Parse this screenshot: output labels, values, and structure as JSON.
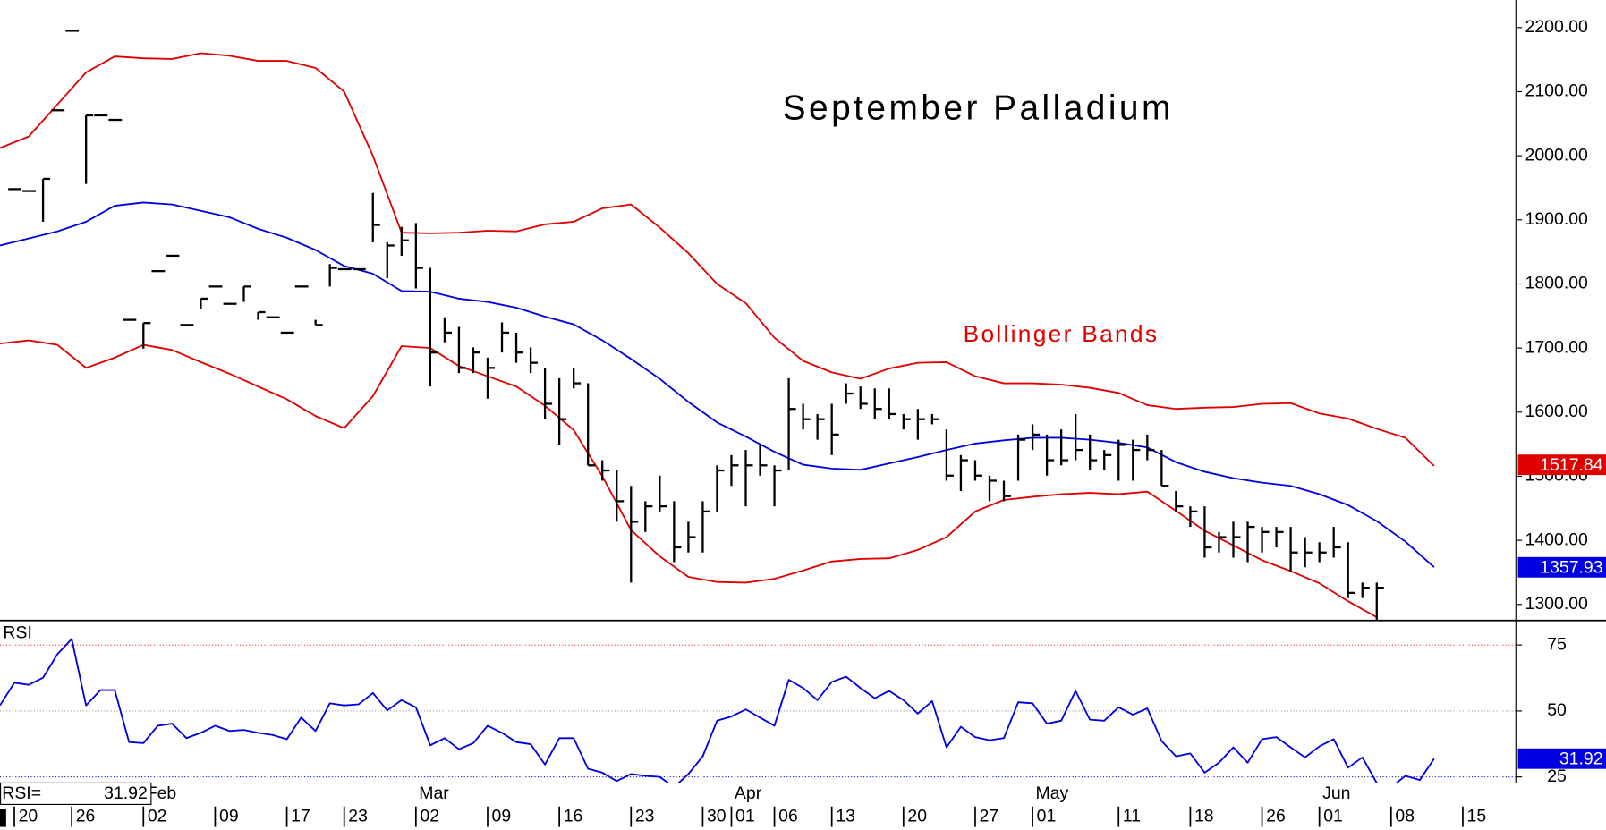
{
  "chart_data": [
    {
      "type": "ohlc",
      "title": "September Palladium",
      "annotation": "Bollinger Bands",
      "xlim": [
        -1,
        104.7
      ],
      "ylim": [
        1275,
        2243
      ],
      "yticks": [
        {
          "value": 1300,
          "label": "1300.00"
        },
        {
          "value": 1400,
          "label": "1400.00"
        },
        {
          "value": 1500,
          "label": "1500.00"
        },
        {
          "value": 1600,
          "label": "1600.00"
        },
        {
          "value": 1700,
          "label": "1700.00"
        },
        {
          "value": 1800,
          "label": "1800.00"
        },
        {
          "value": 1900,
          "label": "1900.00"
        },
        {
          "value": 2000,
          "label": "2000.00"
        },
        {
          "value": 2100,
          "label": "2100.00"
        },
        {
          "value": 2200,
          "label": "2200.00"
        }
      ],
      "bars": {
        "color": "#000000",
        "x": [
          0,
          1,
          2,
          3,
          4,
          5,
          6,
          7,
          8,
          9,
          10,
          11,
          12,
          13,
          14,
          15,
          16,
          17,
          18,
          19,
          20,
          21,
          22,
          23,
          24,
          25,
          26,
          27,
          28,
          29,
          30,
          31,
          32,
          33,
          34,
          35,
          36,
          37,
          38,
          39,
          40,
          41,
          42,
          43,
          44,
          45,
          46,
          47,
          48,
          49,
          50,
          51,
          52,
          53,
          54,
          55,
          56,
          57,
          58,
          59,
          60,
          61,
          62,
          63,
          64,
          65,
          66,
          67,
          68,
          69,
          70,
          71,
          72,
          73,
          74,
          75,
          76,
          77,
          78,
          79,
          80,
          81,
          82,
          83,
          84,
          85,
          86,
          87,
          88,
          89,
          90,
          91,
          92,
          93,
          94,
          95
        ],
        "high": [
          1948,
          1945,
          1964,
          2071,
          2195,
          2063,
          2063,
          2056,
          1744,
          1739,
          1820,
          1844,
          1736,
          1777,
          1796,
          1769,
          1796,
          1756,
          1748,
          1724,
          1796,
          1744,
          1831,
          1823,
          1823,
          1942,
          1865,
          1889,
          1895,
          1825,
          1748,
          1733,
          1701,
          1685,
          1740,
          1724,
          1701,
          1669,
          1653,
          1669,
          1645,
          1525,
          1509,
          1485,
          1461,
          1501,
          1461,
          1429,
          1461,
          1517,
          1533,
          1541,
          1549,
          1517,
          1653,
          1613,
          1597,
          1613,
          1645,
          1640,
          1637,
          1637,
          1597,
          1605,
          1597,
          1573,
          1533,
          1525,
          1501,
          1493,
          1565,
          1581,
          1565,
          1573,
          1597,
          1565,
          1541,
          1557,
          1557,
          1565,
          1541,
          1477,
          1453,
          1453,
          1413,
          1429,
          1429,
          1421,
          1421,
          1421,
          1405,
          1397,
          1421,
          1397,
          1334,
          1334
        ],
        "low": [
          1948,
          1945,
          1897,
          2071,
          2195,
          1956,
          2063,
          2056,
          1744,
          1699,
          1820,
          1844,
          1736,
          1761,
          1796,
          1769,
          1772,
          1744,
          1748,
          1724,
          1796,
          1736,
          1796,
          1823,
          1823,
          1865,
          1809,
          1844,
          1793,
          1640,
          1709,
          1661,
          1661,
          1621,
          1693,
          1677,
          1661,
          1589,
          1549,
          1637,
          1517,
          1493,
          1429,
          1334,
          1413,
          1445,
          1366,
          1381,
          1381,
          1445,
          1485,
          1453,
          1501,
          1453,
          1509,
          1573,
          1557,
          1533,
          1613,
          1605,
          1589,
          1589,
          1573,
          1557,
          1581,
          1493,
          1477,
          1493,
          1461,
          1461,
          1493,
          1541,
          1501,
          1517,
          1525,
          1509,
          1509,
          1493,
          1493,
          1525,
          1485,
          1445,
          1421,
          1373,
          1381,
          1373,
          1366,
          1381,
          1389,
          1350,
          1358,
          1366,
          1373,
          1310,
          1310,
          1275
        ],
        "close": [
          1948,
          1945,
          1964,
          2071,
          2195,
          2063,
          2063,
          2056,
          1744,
          1739,
          1820,
          1844,
          1736,
          1777,
          1796,
          1769,
          1796,
          1756,
          1748,
          1724,
          1796,
          1736,
          1825,
          1823,
          1823,
          1892,
          1860,
          1868,
          1825,
          1693,
          1724,
          1669,
          1693,
          1669,
          1724,
          1693,
          1677,
          1613,
          1589,
          1645,
          1517,
          1509,
          1461,
          1429,
          1453,
          1453,
          1389,
          1405,
          1445,
          1509,
          1517,
          1517,
          1517,
          1509,
          1605,
          1589,
          1589,
          1565,
          1629,
          1613,
          1605,
          1597,
          1589,
          1589,
          1589,
          1501,
          1525,
          1501,
          1493,
          1469,
          1557,
          1565,
          1525,
          1525,
          1541,
          1525,
          1533,
          1549,
          1541,
          1541,
          1485,
          1453,
          1445,
          1389,
          1405,
          1405,
          1421,
          1413,
          1413,
          1381,
          1381,
          1381,
          1389,
          1318,
          1326,
          1326
        ]
      },
      "series": [
        {
          "name": "upper",
          "color": "#e00000",
          "last": 1517.84,
          "x": [
            -1,
            1,
            3,
            5,
            7,
            9,
            11,
            13,
            15,
            17,
            19,
            21,
            23,
            25,
            27,
            29,
            31,
            33,
            35,
            37,
            39,
            41,
            43,
            45,
            47,
            49,
            51,
            53,
            55,
            57,
            59,
            61,
            63,
            65,
            67,
            69,
            71,
            73,
            75,
            77,
            79,
            81,
            83,
            85,
            87,
            89,
            91,
            93,
            95,
            97,
            99
          ],
          "values": [
            2012,
            2030,
            2080,
            2130,
            2155,
            2152,
            2151,
            2160,
            2156,
            2148,
            2148,
            2137,
            2100,
            2000,
            1880,
            1879,
            1880,
            1883,
            1882,
            1893,
            1897,
            1918,
            1924,
            1888,
            1848,
            1800,
            1770,
            1716,
            1680,
            1662,
            1652,
            1668,
            1677,
            1678,
            1656,
            1645,
            1645,
            1643,
            1638,
            1630,
            1611,
            1605,
            1607,
            1608,
            1613,
            1614,
            1598,
            1590,
            1574,
            1560,
            1516
          ]
        },
        {
          "name": "middle",
          "color": "#0000e0",
          "last": 1357.93,
          "x": [
            -1,
            1,
            3,
            5,
            7,
            9,
            11,
            13,
            15,
            17,
            19,
            21,
            23,
            25,
            27,
            29,
            31,
            33,
            35,
            37,
            39,
            41,
            43,
            45,
            47,
            49,
            51,
            53,
            55,
            57,
            59,
            61,
            63,
            65,
            67,
            69,
            71,
            73,
            75,
            77,
            79,
            81,
            83,
            85,
            87,
            89,
            91,
            93,
            95,
            97,
            99
          ],
          "values": [
            1860,
            1871,
            1882,
            1897,
            1922,
            1927,
            1924,
            1914,
            1904,
            1886,
            1872,
            1853,
            1828,
            1816,
            1789,
            1788,
            1777,
            1772,
            1763,
            1749,
            1737,
            1712,
            1683,
            1652,
            1616,
            1584,
            1562,
            1538,
            1518,
            1512,
            1510,
            1520,
            1530,
            1541,
            1551,
            1556,
            1560,
            1560,
            1557,
            1552,
            1545,
            1522,
            1507,
            1497,
            1490,
            1485,
            1472,
            1455,
            1430,
            1398,
            1358
          ]
        },
        {
          "name": "lower",
          "color": "#e00000",
          "x": [
            -1,
            1,
            3,
            5,
            7,
            9,
            11,
            13,
            15,
            17,
            19,
            21,
            23,
            25,
            27,
            29,
            31,
            33,
            35,
            37,
            39,
            41,
            43,
            45,
            47,
            49,
            51,
            53,
            55,
            57,
            59,
            61,
            63,
            65,
            67,
            69,
            71,
            73,
            75,
            77,
            79,
            81,
            83,
            85,
            87,
            89,
            91,
            93,
            95
          ],
          "values": [
            1707,
            1712,
            1705,
            1669,
            1685,
            1705,
            1697,
            1678,
            1660,
            1640,
            1620,
            1594,
            1575,
            1625,
            1703,
            1700,
            1672,
            1656,
            1640,
            1610,
            1572,
            1500,
            1416,
            1375,
            1343,
            1335,
            1334,
            1340,
            1353,
            1367,
            1371,
            1372,
            1385,
            1405,
            1445,
            1463,
            1468,
            1472,
            1474,
            1472,
            1476,
            1446,
            1415,
            1392,
            1369,
            1352,
            1333,
            1305,
            1280
          ]
        }
      ]
    },
    {
      "type": "line",
      "label": "RSI",
      "readout_label": "RSI=",
      "color": "#0000e0",
      "last": 31.92,
      "xlim": [
        -1,
        104.7
      ],
      "ylim": [
        22.7,
        84.3
      ],
      "yticks": [
        25,
        50,
        75
      ],
      "grid": true,
      "grid_colors": [
        "#0000e0",
        "#808080",
        "#e00000"
      ],
      "xticks": [
        {
          "value": 0,
          "label": "20"
        },
        {
          "value": 4,
          "label": "26"
        },
        {
          "value": 9,
          "label": "02"
        },
        {
          "value": 14,
          "label": "09"
        },
        {
          "value": 19,
          "label": "17"
        },
        {
          "value": 23,
          "label": "23"
        },
        {
          "value": 28,
          "label": "02"
        },
        {
          "value": 33,
          "label": "09"
        },
        {
          "value": 38,
          "label": "16"
        },
        {
          "value": 43,
          "label": "23"
        },
        {
          "value": 48,
          "label": "30"
        },
        {
          "value": 50,
          "label": "01"
        },
        {
          "value": 53,
          "label": "06"
        },
        {
          "value": 57,
          "label": "13"
        },
        {
          "value": 62,
          "label": "20"
        },
        {
          "value": 67,
          "label": "27"
        },
        {
          "value": 71,
          "label": "01"
        },
        {
          "value": 77,
          "label": "11"
        },
        {
          "value": 82,
          "label": "18"
        },
        {
          "value": 87,
          "label": "26"
        },
        {
          "value": 91,
          "label": "01"
        },
        {
          "value": 96,
          "label": "08"
        },
        {
          "value": 101,
          "label": "15"
        }
      ],
      "month_ticks": [
        {
          "value": 9,
          "label": "Feb"
        },
        {
          "value": 28,
          "label": "Mar"
        },
        {
          "value": 50,
          "label": "Apr"
        },
        {
          "value": 71,
          "label": "May"
        },
        {
          "value": 91,
          "label": "Jun"
        }
      ],
      "x": [
        -1,
        0,
        1,
        2,
        3,
        4,
        5,
        6,
        7,
        8,
        9,
        10,
        11,
        12,
        13,
        14,
        15,
        16,
        17,
        18,
        19,
        20,
        21,
        22,
        23,
        24,
        25,
        26,
        27,
        28,
        29,
        30,
        31,
        32,
        33,
        34,
        35,
        36,
        37,
        38,
        39,
        40,
        41,
        42,
        43,
        44,
        45,
        46,
        47,
        48,
        49,
        50,
        51,
        52,
        53,
        54,
        55,
        56,
        57,
        58,
        59,
        60,
        61,
        62,
        63,
        64,
        65,
        66,
        67,
        68,
        69,
        70,
        71,
        72,
        73,
        74,
        75,
        76,
        77,
        78,
        79,
        80,
        81,
        82,
        83,
        84,
        85,
        86,
        87,
        88,
        89,
        90,
        91,
        92,
        93,
        94,
        95,
        96,
        97,
        98,
        99
      ],
      "values": [
        52.1,
        60.7,
        59.9,
        62.6,
        71.5,
        77.3,
        52.1,
        57.9,
        57.9,
        38.2,
        37.8,
        44.4,
        45.2,
        39.7,
        41.7,
        44.4,
        42.4,
        42.8,
        41.7,
        40.9,
        39.3,
        47.5,
        42.4,
        52.9,
        52.1,
        52.5,
        56.8,
        50.2,
        54.1,
        51.4,
        37.0,
        39.7,
        35.5,
        37.8,
        44.4,
        41.7,
        38.2,
        37.4,
        29.7,
        39.7,
        39.7,
        28.1,
        26.6,
        23.4,
        26.1,
        25.4,
        25.0,
        21.1,
        26.1,
        32.8,
        46.3,
        47.9,
        50.6,
        47.5,
        44.4,
        61.8,
        58.7,
        54.1,
        61.0,
        63.0,
        58.7,
        54.8,
        57.6,
        54.1,
        49.0,
        53.7,
        36.2,
        44.0,
        40.1,
        38.9,
        39.7,
        53.3,
        52.9,
        45.2,
        46.3,
        57.6,
        46.7,
        46.3,
        51.4,
        48.6,
        51.0,
        38.6,
        32.8,
        33.9,
        26.6,
        30.4,
        36.2,
        30.4,
        39.3,
        40.1,
        36.2,
        32.4,
        36.6,
        39.3,
        28.5,
        32.4,
        22.7,
        21.1,
        25.4,
        23.8,
        31.9
      ]
    }
  ]
}
